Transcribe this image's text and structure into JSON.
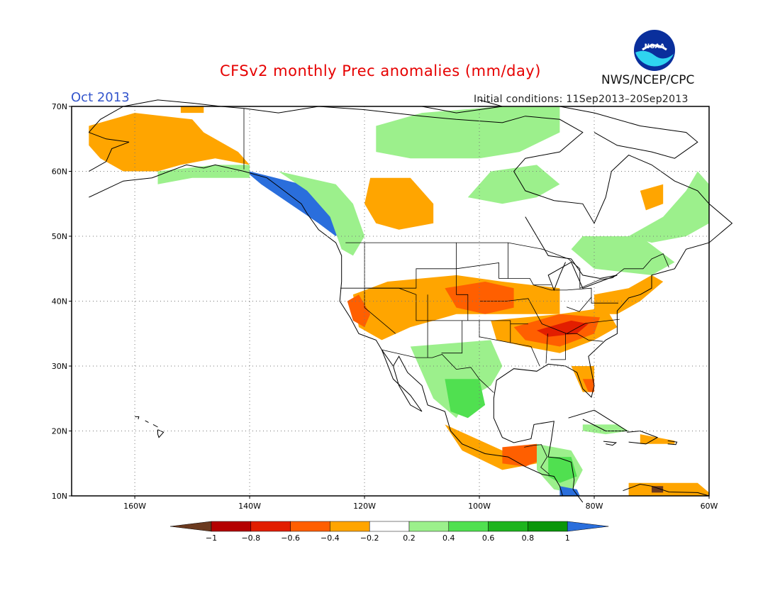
{
  "header": {
    "title": "CFSv2 monthly Prec anomalies (mm/day)",
    "month": "Oct 2013",
    "initial_conditions": "Initial conditions: 11Sep2013–20Sep2013",
    "agency": "NWS/NCEP/CPC",
    "logo_text": "NOAA"
  },
  "map": {
    "lat_labels": [
      "70N",
      "60N",
      "50N",
      "40N",
      "30N",
      "20N",
      "10N"
    ],
    "lat_values": [
      70,
      60,
      50,
      40,
      30,
      20,
      10
    ],
    "lon_labels": [
      "160W",
      "140W",
      "120W",
      "100W",
      "80W",
      "60W"
    ],
    "lon_values": [
      -160,
      -140,
      -120,
      -100,
      -80,
      -60
    ],
    "lon_range": [
      -171,
      -60
    ],
    "lat_range": [
      10,
      70
    ]
  },
  "legend": {
    "labels": [
      "−1",
      "−0.8",
      "−0.6",
      "−0.4",
      "−0.2",
      "0.2",
      "0.4",
      "0.6",
      "0.8",
      "1"
    ],
    "colors": [
      "#6b3a1f",
      "#b40000",
      "#e21e00",
      "#ff5f00",
      "#ffa500",
      "#ffffff",
      "#9cf08c",
      "#50e050",
      "#1eb41e",
      "#0a960a",
      "#2a6edc"
    ]
  },
  "colors": {
    "coast": "#000000",
    "grid": "#777777"
  }
}
